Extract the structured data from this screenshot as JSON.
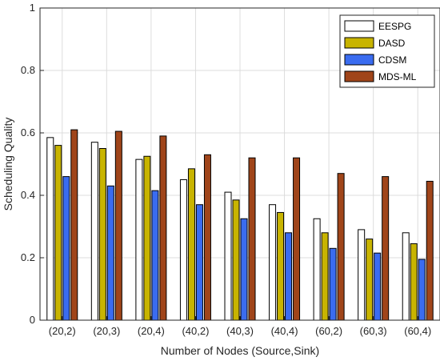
{
  "chart_data": {
    "type": "bar",
    "title": "",
    "xlabel": "Number of Nodes (Source,Sink)",
    "ylabel": "Scheduling Quality",
    "ylim": [
      0,
      1
    ],
    "yticks": [
      "0",
      "0.2",
      "0.4",
      "0.6",
      "0.8",
      "1"
    ],
    "grid": true,
    "legend_position": "top-right",
    "categories": [
      "(20,2)",
      "(20,3)",
      "(20,4)",
      "(40,2)",
      "(40,3)",
      "(40,4)",
      "(60,2)",
      "(60,3)",
      "(60,4)"
    ],
    "series": [
      {
        "name": "EESPG",
        "color": "#ffffff",
        "values": [
          0.585,
          0.57,
          0.515,
          0.45,
          0.41,
          0.37,
          0.325,
          0.29,
          0.28
        ]
      },
      {
        "name": "DASD",
        "color": "#c8b400",
        "values": [
          0.56,
          0.55,
          0.525,
          0.485,
          0.385,
          0.345,
          0.28,
          0.26,
          0.245
        ]
      },
      {
        "name": "CDSM",
        "color": "#3a6cf0",
        "values": [
          0.46,
          0.43,
          0.415,
          0.37,
          0.325,
          0.28,
          0.23,
          0.215,
          0.195
        ]
      },
      {
        "name": "MDS-ML",
        "color": "#a0451a",
        "values": [
          0.61,
          0.605,
          0.59,
          0.53,
          0.52,
          0.52,
          0.47,
          0.46,
          0.445
        ]
      }
    ]
  }
}
